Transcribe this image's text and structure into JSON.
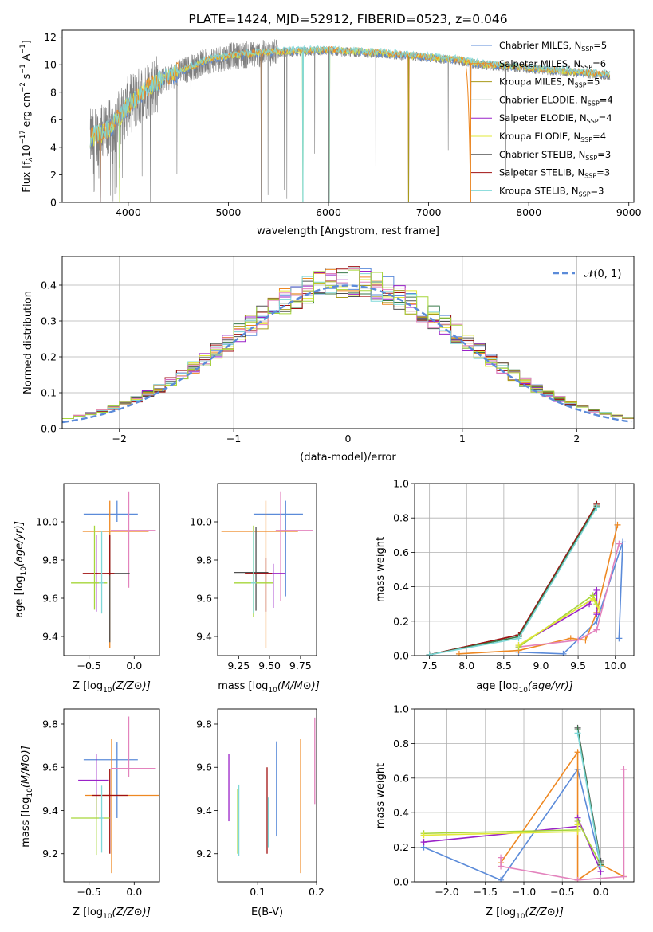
{
  "colors": {
    "chabrier_miles": "#5b8bd9",
    "salpeter_miles": "#ee8822",
    "kroupa_miles": "#a89a1a",
    "chabrier_elodie": "#3a7a4a",
    "salpeter_elodie": "#9a22c8",
    "kroupa_elodie": "#e2e838",
    "chabrier_stelib": "#505050",
    "salpeter_stelib": "#a01010",
    "kroupa_stelib": "#7fd8d8",
    "pink": "#e383bd",
    "lime": "#a6d63a",
    "gray": "#7f7f7f",
    "normal_curve": "#5b8bd9"
  },
  "chart_data": [
    {
      "id": "spectrum",
      "type": "line",
      "title": "PLATE=1424, MJD=52912, FIBERID=0523, z=0.046",
      "xlabel": "wavelength [Angstrom, rest frame]",
      "ylabel": "Flux [f_λ 10^-17 erg cm^-2 s^-1 A^-1]",
      "ylabel_main": "Flux [f",
      "ylabel_sub": "λ",
      "ylabel_mid": "10",
      "ylabel_exp1": "−17",
      "ylabel_rest": " erg cm",
      "ylabel_exp2": "−2",
      "ylabel_s": " s",
      "ylabel_exp3": "−1",
      "ylabel_end": " A",
      "ylabel_exp4": "−1",
      "ylabel_close": "]",
      "xlim": [
        3340,
        9050
      ],
      "ylim": [
        0,
        12.5
      ],
      "xticks": [
        4000,
        5000,
        6000,
        7000,
        8000,
        9000
      ],
      "yticks": [
        0,
        2,
        4,
        6,
        8,
        10,
        12
      ],
      "legend_position": "right",
      "legend": [
        {
          "name": "Chabrier MILES, N",
          "n": "=5",
          "color": "#5b8bd9"
        },
        {
          "name": "Salpeter MILES, N",
          "n": "=6",
          "color": "#ee8822"
        },
        {
          "name": "Kroupa MILES, N",
          "n": "=5",
          "color": "#a89a1a"
        },
        {
          "name": "Chabrier ELODIE, N",
          "n": "=4",
          "color": "#3a7a4a"
        },
        {
          "name": "Salpeter ELODIE, N",
          "n": "=4",
          "color": "#9a22c8"
        },
        {
          "name": "Kroupa ELODIE, N",
          "n": "=4",
          "color": "#e2e838"
        },
        {
          "name": "Chabrier STELIB, N",
          "n": "=3",
          "color": "#505050"
        },
        {
          "name": "Salpeter STELIB, N",
          "n": "=3",
          "color": "#a01010"
        },
        {
          "name": "Kroupa STELIB, N",
          "n": "=3",
          "color": "#7fd8d8"
        }
      ],
      "legend_sub": "SSP",
      "data_model": {
        "wave_start": 3620,
        "wave_end": 8810,
        "continuum": [
          [
            3620,
            4.6
          ],
          [
            3800,
            5.2
          ],
          [
            3900,
            6.0
          ],
          [
            4000,
            7.0
          ],
          [
            4200,
            8.3
          ],
          [
            4500,
            9.4
          ],
          [
            4800,
            10.3
          ],
          [
            5000,
            10.6
          ],
          [
            5500,
            10.9
          ],
          [
            6000,
            11.0
          ],
          [
            6500,
            10.8
          ],
          [
            7000,
            10.5
          ],
          [
            7300,
            10.3
          ],
          [
            7500,
            10.0
          ],
          [
            8000,
            9.7
          ],
          [
            8500,
            9.4
          ],
          [
            8810,
            9.2
          ]
        ],
        "masked_drops": [
          3720,
          3915,
          5330,
          5745,
          6005,
          6800,
          7420
        ]
      }
    },
    {
      "id": "residuals",
      "type": "histogram",
      "xlabel": "(data-model)/error",
      "ylabel": "Normed distribution",
      "xlim": [
        -2.5,
        2.5
      ],
      "ylim": [
        0,
        0.48
      ],
      "xticks": [
        -2,
        -1,
        0,
        1,
        2
      ],
      "yticks": [
        0.0,
        0.1,
        0.2,
        0.3,
        0.4
      ],
      "grid": true,
      "legend": [
        {
          "name": "𝒩(0, 1)",
          "style": "dashed",
          "color": "#5b8bd9"
        }
      ],
      "legend_position": "top-right",
      "bin_width": 0.1,
      "peak": 0.4
    },
    {
      "id": "age_vs_Z",
      "type": "errorbar",
      "xlabel": "Z [log10(Z/Z⊙)]",
      "ylabel": "age [log10(age/yr)]",
      "xlim": [
        -0.78,
        0.28
      ],
      "ylim": [
        9.3,
        10.2
      ],
      "xticks": [
        -0.5,
        0.0
      ],
      "yticks": [
        9.4,
        9.6,
        9.8,
        10.0
      ],
      "points": [
        {
          "x": -0.19,
          "xerr": [
            0.37,
            0.23
          ],
          "y": 10.04,
          "yerr": [
            0.04,
            0.07
          ],
          "color": "#5b8bd9"
        },
        {
          "x": -0.27,
          "xerr": [
            0.3,
            0.43
          ],
          "y": 9.95,
          "yerr": [
            0.61,
            0.16
          ],
          "color": "#ee8822"
        },
        {
          "x": -0.06,
          "xerr": [
            0.2,
            0.3
          ],
          "y": 9.955,
          "yerr": [
            0.3,
            0.2
          ],
          "color": "#e383bd"
        },
        {
          "x": -0.42,
          "xerr": [
            0.04,
            0.02
          ],
          "y": 9.73,
          "yerr": [
            0.2,
            0.2
          ],
          "color": "#9a22c8"
        },
        {
          "x": -0.27,
          "xerr": [
            0.03,
            0.22
          ],
          "y": 9.73,
          "yerr": [
            0.36,
            0.2
          ],
          "color": "#505050"
        },
        {
          "x": -0.27,
          "xerr": [
            0.3,
            0.05
          ],
          "y": 9.73,
          "yerr": [
            0.01,
            0.2
          ],
          "color": "#a01010"
        },
        {
          "x": -0.44,
          "xerr": [
            0.26,
            0.14
          ],
          "y": 9.68,
          "yerr": [
            0.14,
            0.3
          ],
          "color": "#a6d63a"
        },
        {
          "x": -0.36,
          "xerr": [
            0.03,
            0.03
          ],
          "y": 9.68,
          "yerr": [
            0.16,
            0.27
          ],
          "color": "#7fd8d8"
        }
      ]
    },
    {
      "id": "age_vs_mass",
      "type": "errorbar",
      "xlabel": "mass [log10(M/M⊙)]",
      "ylabel": "",
      "xlim": [
        9.08,
        9.88
      ],
      "ylim": [
        9.3,
        10.2
      ],
      "xticks": [
        9.25,
        9.5,
        9.75
      ],
      "yticks": [
        9.4,
        9.6,
        9.8,
        10.0
      ],
      "points": [
        {
          "x": 9.63,
          "xerr": [
            0.26,
            0.14
          ],
          "y": 10.04,
          "yerr": [
            0.43,
            0.07
          ],
          "color": "#5b8bd9"
        },
        {
          "x": 9.47,
          "xerr": [
            0.36,
            0.26
          ],
          "y": 9.95,
          "yerr": [
            0.61,
            0.16
          ],
          "color": "#ee8822"
        },
        {
          "x": 9.59,
          "xerr": [
            0.04,
            0.26
          ],
          "y": 9.955,
          "yerr": [
            0.37,
            0.2
          ],
          "color": "#e383bd"
        },
        {
          "x": 9.53,
          "xerr": [
            0.16,
            0.1
          ],
          "y": 9.73,
          "yerr": [
            0.18,
            0.05
          ],
          "color": "#9a22c8"
        },
        {
          "x": 9.39,
          "xerr": [
            0.18,
            0.1
          ],
          "y": 9.735,
          "yerr": [
            0.2,
            0.24
          ],
          "color": "#505050"
        },
        {
          "x": 9.47,
          "xerr": [
            0.17,
            0.05
          ],
          "y": 9.73,
          "yerr": [
            0.2,
            0.08
          ],
          "color": "#a01010"
        },
        {
          "x": 9.37,
          "xerr": [
            0.16,
            0.16
          ],
          "y": 9.68,
          "yerr": [
            0.18,
            0.3
          ],
          "color": "#a6d63a"
        },
        {
          "x": 9.37,
          "xerr": [
            0.02,
            0.02
          ],
          "y": 9.68,
          "yerr": [
            0.16,
            0.27
          ],
          "color": "#7fd8d8"
        }
      ]
    },
    {
      "id": "mass_weight_vs_age",
      "type": "line",
      "xlabel": "age [log10(age/yr)]",
      "ylabel": "mass weight",
      "xlim": [
        7.3,
        10.25
      ],
      "ylim": [
        0,
        1.0
      ],
      "xticks": [
        7.5,
        8.0,
        8.5,
        9.0,
        9.5,
        10.0
      ],
      "yticks": [
        0.0,
        0.2,
        0.4,
        0.6,
        0.8,
        1.0
      ],
      "grid": true,
      "series": [
        {
          "color": "#5b8bd9",
          "x": [
            8.7,
            9.3,
            9.75,
            10.1,
            10.05
          ],
          "y": [
            0.02,
            0.01,
            0.2,
            0.66,
            0.1
          ]
        },
        {
          "color": "#ee8822",
          "x": [
            7.9,
            8.7,
            9.4,
            9.6,
            9.75,
            10.03
          ],
          "y": [
            0.01,
            0.03,
            0.1,
            0.09,
            0.25,
            0.76
          ]
        },
        {
          "color": "#e383bd",
          "x": [
            8.7,
            9.5,
            9.75,
            10.05
          ],
          "y": [
            0.05,
            0.09,
            0.15,
            0.65
          ]
        },
        {
          "color": "#9a22c8",
          "x": [
            8.7,
            9.65,
            9.75,
            9.75
          ],
          "y": [
            0.06,
            0.3,
            0.38,
            0.24
          ]
        },
        {
          "color": "#505050",
          "x": [
            7.5,
            8.7,
            9.75
          ],
          "y": [
            0.005,
            0.12,
            0.88
          ]
        },
        {
          "color": "#a01010",
          "x": [
            7.5,
            8.7,
            9.75
          ],
          "y": [
            0.005,
            0.12,
            0.88
          ]
        },
        {
          "color": "#a6d63a",
          "x": [
            8.7,
            9.7,
            9.75
          ],
          "y": [
            0.05,
            0.35,
            0.3
          ]
        },
        {
          "color": "#e2e838",
          "x": [
            8.7,
            9.7,
            9.78
          ],
          "y": [
            0.06,
            0.33,
            0.27
          ]
        },
        {
          "color": "#3a7a4a",
          "x": [
            7.5,
            8.7,
            9.75
          ],
          "y": [
            0.005,
            0.11,
            0.87
          ]
        },
        {
          "color": "#7fd8d8",
          "x": [
            7.5,
            8.7,
            9.75
          ],
          "y": [
            0.005,
            0.1,
            0.86
          ]
        }
      ]
    },
    {
      "id": "mass_vs_Z",
      "type": "errorbar",
      "xlabel": "Z [log10(Z/Z⊙)]",
      "ylabel": "mass [log10(M/M⊙)]",
      "xlim": [
        -0.78,
        0.28
      ],
      "ylim": [
        9.07,
        9.87
      ],
      "xticks": [
        -0.5,
        0.0
      ],
      "yticks": [
        9.2,
        9.4,
        9.6,
        9.8
      ],
      "points": [
        {
          "x": -0.19,
          "xerr": [
            0.37,
            0.23
          ],
          "y": 9.635,
          "yerr": [
            0.27,
            0.08
          ],
          "color": "#5b8bd9"
        },
        {
          "x": -0.25,
          "xerr": [
            0.3,
            0.53
          ],
          "y": 9.47,
          "yerr": [
            0.36,
            0.26
          ],
          "color": "#ee8822"
        },
        {
          "x": -0.06,
          "xerr": [
            0.2,
            0.3
          ],
          "y": 9.595,
          "yerr": [
            0.04,
            0.24
          ],
          "color": "#e383bd"
        },
        {
          "x": -0.42,
          "xerr": [
            0.2,
            0.14
          ],
          "y": 9.54,
          "yerr": [
            0.16,
            0.12
          ],
          "color": "#9a22c8"
        },
        {
          "x": -0.27,
          "xerr": [
            0.2,
            0.2
          ],
          "y": 9.47,
          "yerr": [
            0.27,
            0.12
          ],
          "color": "#a01010"
        },
        {
          "x": -0.42,
          "xerr": [
            0.28,
            0.15
          ],
          "y": 9.365,
          "yerr": [
            0.17,
            0.1
          ],
          "color": "#a6d63a"
        },
        {
          "x": -0.36,
          "xerr": [
            0.03,
            0.03
          ],
          "y": 9.365,
          "yerr": [
            0.16,
            0.15
          ],
          "color": "#7fd8d8"
        }
      ]
    },
    {
      "id": "mass_vs_EBV",
      "type": "errorbar",
      "xlabel": "E(B-V)",
      "ylabel": "",
      "xlim": [
        0.032,
        0.2
      ],
      "ylim": [
        9.07,
        9.87
      ],
      "xticks": [
        0.1,
        0.2
      ],
      "yticks": [
        9.2,
        9.4,
        9.6,
        9.8
      ],
      "points": [
        {
          "x": 0.132,
          "xerr": [
            0,
            0
          ],
          "y": 9.5,
          "yerr": [
            0.22,
            0.22
          ],
          "color": "#5b8bd9"
        },
        {
          "x": 0.173,
          "xerr": [
            0,
            0
          ],
          "y": 9.43,
          "yerr": [
            0.32,
            0.3
          ],
          "color": "#ee8822"
        },
        {
          "x": 0.197,
          "xerr": [
            0,
            0
          ],
          "y": 9.63,
          "yerr": [
            0.2,
            0.2
          ],
          "color": "#e383bd"
        },
        {
          "x": 0.051,
          "xerr": [
            0,
            0
          ],
          "y": 9.5,
          "yerr": [
            0.15,
            0.16
          ],
          "color": "#9a22c8"
        },
        {
          "x": 0.116,
          "xerr": [
            0,
            0
          ],
          "y": 9.4,
          "yerr": [
            0.2,
            0.2
          ],
          "color": "#a01010"
        },
        {
          "x": 0.066,
          "xerr": [
            0,
            0
          ],
          "y": 9.35,
          "yerr": [
            0.15,
            0.15
          ],
          "color": "#a6d63a"
        },
        {
          "x": 0.068,
          "xerr": [
            0,
            0
          ],
          "y": 9.35,
          "yerr": [
            0.16,
            0.17
          ],
          "color": "#7fd8d8"
        },
        {
          "x": 0.118,
          "xerr": [
            0,
            0
          ],
          "y": 9.33,
          "yerr": [
            0.1,
            0.13
          ],
          "color": "#7fd8d8"
        }
      ]
    },
    {
      "id": "mass_weight_vs_Z",
      "type": "line",
      "xlabel": "Z [log10(Z/Z⊙)]",
      "ylabel": "mass weight",
      "xlim": [
        -2.42,
        0.43
      ],
      "ylim": [
        0,
        1.0
      ],
      "xticks": [
        -2.0,
        -1.5,
        -1.0,
        -0.5,
        0.0
      ],
      "yticks": [
        0.0,
        0.2,
        0.4,
        0.6,
        0.8,
        1.0
      ],
      "grid": true,
      "series": [
        {
          "color": "#5b8bd9",
          "x": [
            -2.3,
            -1.3,
            -0.3,
            0.0,
            0.0
          ],
          "y": [
            0.2,
            0.01,
            0.65,
            0.1,
            0.12
          ]
        },
        {
          "color": "#ee8822",
          "x": [
            -1.3,
            -0.3,
            -0.3,
            0.0,
            0.3
          ],
          "y": [
            0.11,
            0.75,
            0.01,
            0.1,
            0.03
          ]
        },
        {
          "color": "#e383bd",
          "x": [
            -1.3,
            -1.3,
            -0.3,
            0.3,
            0.3
          ],
          "y": [
            0.14,
            0.09,
            0.01,
            0.03,
            0.65
          ]
        },
        {
          "color": "#9a22c8",
          "x": [
            -2.3,
            -0.3,
            -0.3,
            0.0
          ],
          "y": [
            0.23,
            0.32,
            0.37,
            0.06
          ]
        },
        {
          "color": "#a6d63a",
          "x": [
            -2.3,
            -0.3,
            -0.3,
            0.0
          ],
          "y": [
            0.28,
            0.3,
            0.35,
            0.1
          ]
        },
        {
          "color": "#e2e838",
          "x": [
            -2.3,
            -0.3,
            -0.3
          ],
          "y": [
            0.27,
            0.29,
            0.33
          ]
        },
        {
          "color": "#505050",
          "x": [
            -0.3,
            0.0,
            0.0
          ],
          "y": [
            0.89,
            0.11,
            0.12
          ]
        },
        {
          "color": "#3a7a4a",
          "x": [
            -0.3,
            0.0
          ],
          "y": [
            0.88,
            0.1
          ]
        },
        {
          "color": "#7fd8d8",
          "x": [
            -0.3,
            0.0
          ],
          "y": [
            0.86,
            0.09
          ]
        }
      ]
    }
  ]
}
